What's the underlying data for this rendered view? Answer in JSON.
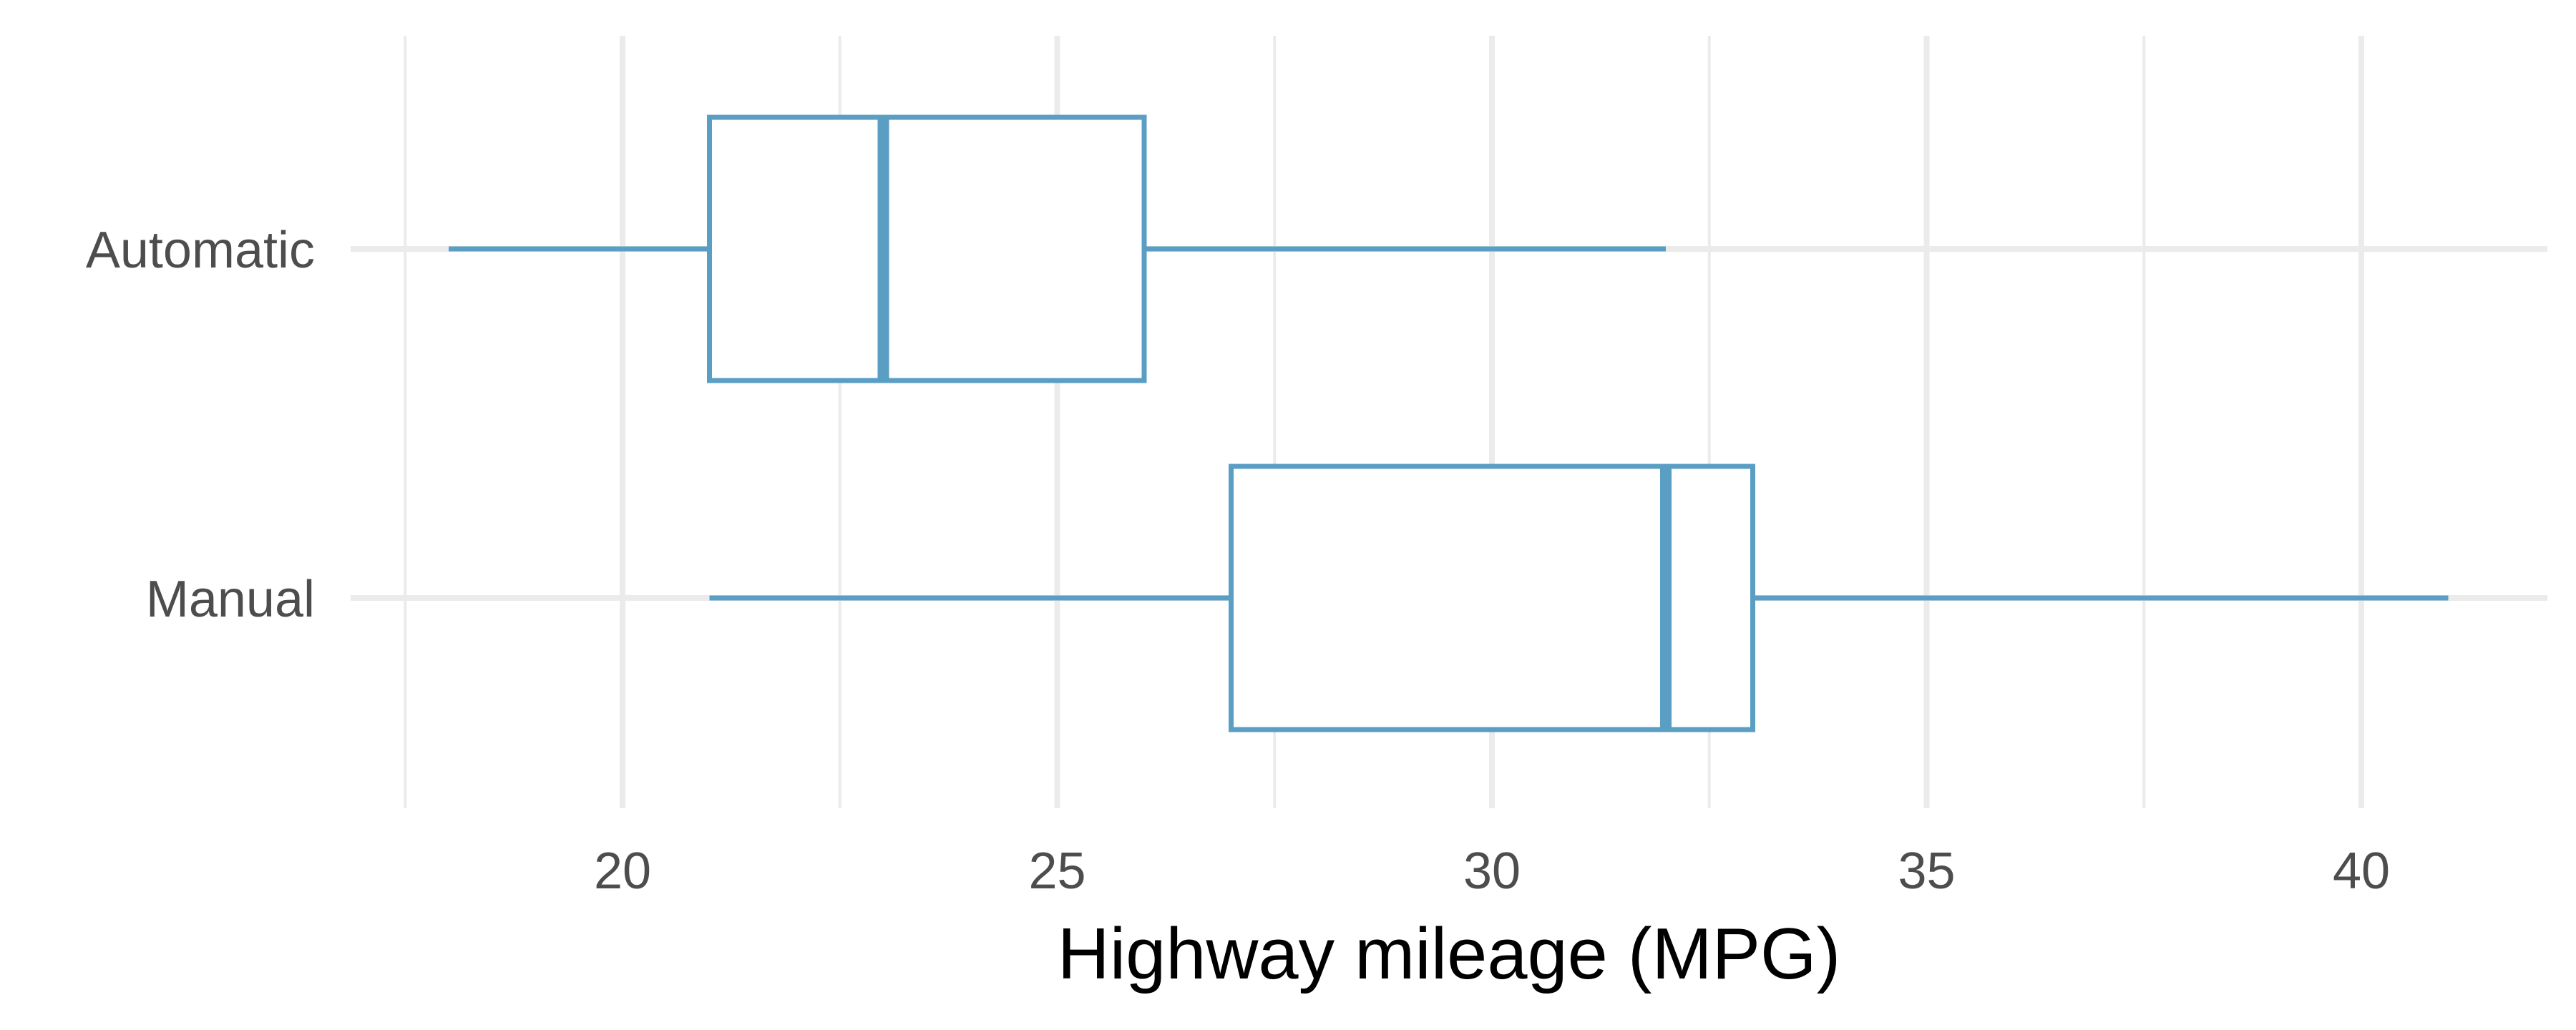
{
  "chart_data": {
    "type": "boxplot",
    "orientation": "horizontal",
    "title": "",
    "xlabel": "Highway mileage (MPG)",
    "ylabel": "",
    "xlim": [
      17.5,
      42.2
    ],
    "x_ticks": [
      20,
      25,
      30,
      35,
      40
    ],
    "x_tick_labels": [
      "20",
      "25",
      "30",
      "35",
      "40"
    ],
    "categories": [
      "Automatic",
      "Manual"
    ],
    "series": [
      {
        "category": "Automatic",
        "min": 18,
        "q1": 21,
        "median": 23,
        "q3": 26,
        "max": 32
      },
      {
        "category": "Manual",
        "min": 21,
        "q1": 27,
        "median": 32,
        "q3": 33,
        "max": 41
      }
    ],
    "grid": true,
    "legend": "none",
    "colors": {
      "box": "#5a9ec4",
      "grid": "#ebebeb",
      "tick_text": "#4d4d4d",
      "axis_title": "#000000"
    }
  }
}
